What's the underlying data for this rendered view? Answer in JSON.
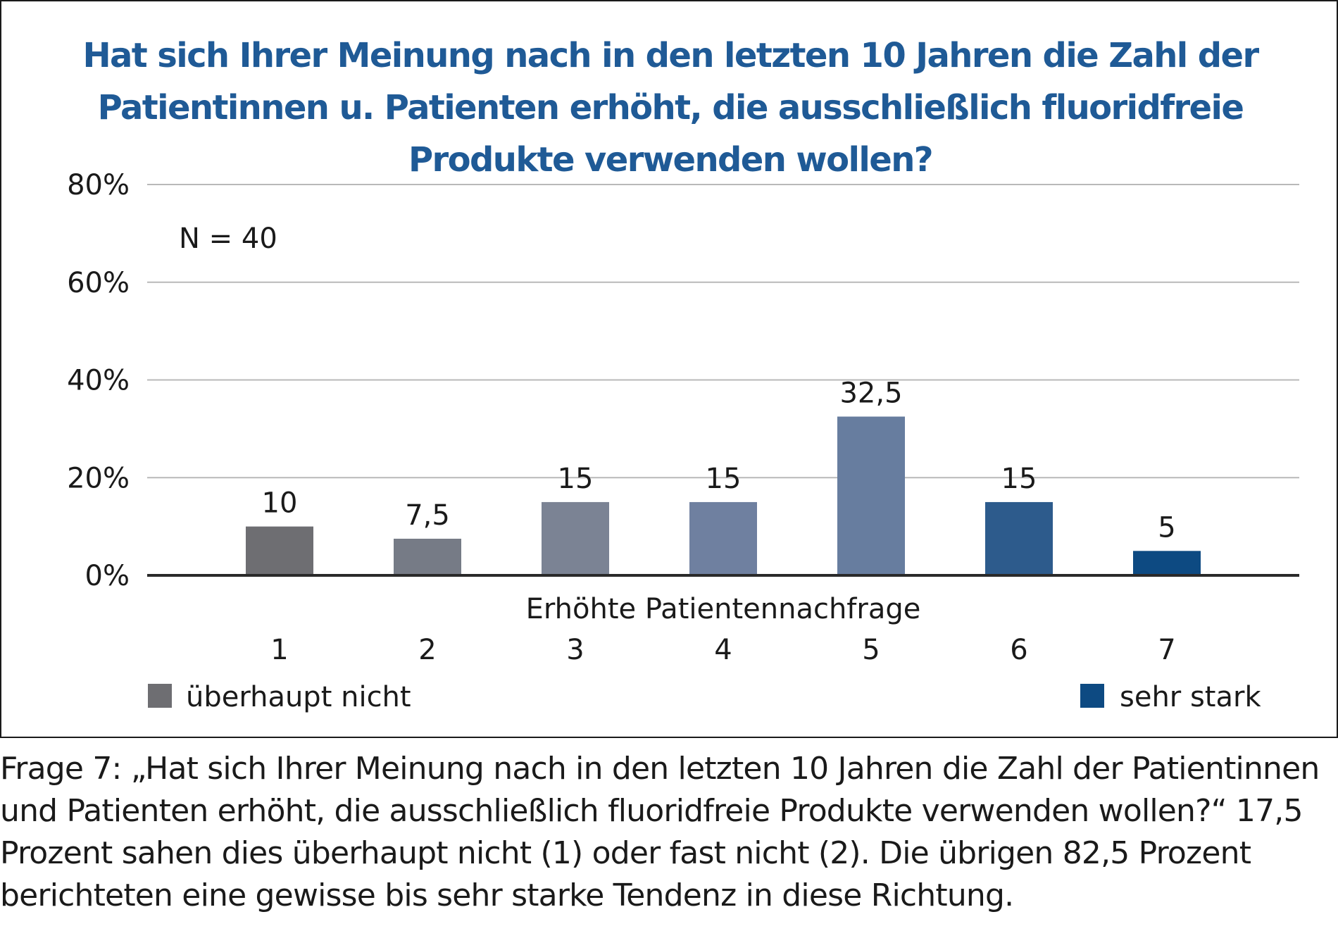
{
  "chart_data": {
    "type": "bar",
    "title": "Hat sich Ihrer Meinung nach in den letzten 10 Jahren die Zahl der Patientinnen u. Patienten erhöht, die ausschließlich fluoridfreie Produkte verwenden wollen?",
    "annotation": "N = 40",
    "xlabel": "Erhöhte Patientennachfrage",
    "ylabel": "",
    "categories": [
      "1",
      "2",
      "3",
      "4",
      "5",
      "6",
      "7"
    ],
    "values": [
      10,
      7.5,
      15,
      15,
      32.5,
      15,
      5
    ],
    "value_labels": [
      "10",
      "7,5",
      "15",
      "15",
      "32,5",
      "15",
      "5"
    ],
    "ylim": [
      0,
      80
    ],
    "yticks": [
      0,
      20,
      40,
      60,
      80
    ],
    "ytick_labels": [
      "0%",
      "20%",
      "40%",
      "60%",
      "80%"
    ],
    "grid": true,
    "bar_colors": [
      "#6e6e72",
      "#767b86",
      "#7b8394",
      "#6f80a0",
      "#677d9f",
      "#2d5b8c",
      "#0d4a82"
    ],
    "legend": {
      "placement": "bottom",
      "items": [
        {
          "label": "überhaupt nicht",
          "color": "#6e6e72"
        },
        {
          "label": "sehr stark",
          "color": "#0d4a82"
        }
      ]
    }
  },
  "caption": "Frage 7: „Hat sich Ihrer Meinung nach in den letzten 10 Jahren die Zahl der Patientinnen und Patienten erhöht, die ausschließlich fluoridfreie Produkte verwenden wollen?“ 17,5 Prozent sahen dies überhaupt nicht (1) oder fast nicht (2). Die übrigen 82,5 Prozent berichteten eine gewisse bis sehr starke Tendenz in diese Richtung."
}
